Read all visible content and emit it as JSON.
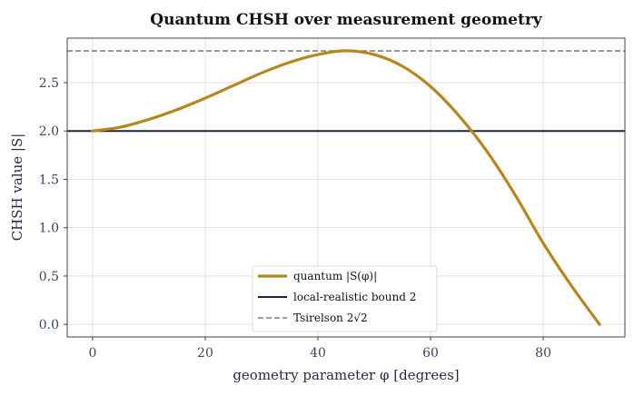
{
  "chart_data": {
    "type": "line",
    "title": "Quantum CHSH over measurement geometry",
    "xlabel": "geometry parameter  φ  [degrees]",
    "ylabel": "CHSH value  |S|",
    "xlim": [
      -4.5,
      94.5
    ],
    "ylim": [
      -0.13,
      2.96
    ],
    "x_ticks": [
      0,
      20,
      40,
      60,
      80
    ],
    "x_tick_labels": [
      "0",
      "20",
      "40",
      "60",
      "80"
    ],
    "y_ticks": [
      0.0,
      0.5,
      1.0,
      1.5,
      2.0,
      2.5
    ],
    "y_tick_labels": [
      "0.0",
      "0.5",
      "1.0",
      "1.5",
      "2.0",
      "2.5"
    ],
    "grid": true,
    "legend_position": "bottom-center",
    "series": [
      {
        "name": "quantum |S(φ)|",
        "style": "solid",
        "color": "#b8861f",
        "x": [
          0,
          5,
          10,
          15,
          20,
          25,
          30,
          35,
          40,
          45,
          50,
          55,
          60,
          65,
          70,
          75,
          80,
          85,
          90
        ],
        "y": [
          2.0,
          2.04,
          2.12,
          2.22,
          2.34,
          2.47,
          2.6,
          2.71,
          2.79,
          2.83,
          2.79,
          2.67,
          2.46,
          2.16,
          1.79,
          1.34,
          0.84,
          0.4,
          0.0
        ]
      },
      {
        "name": "local-realistic bound 2",
        "style": "solid",
        "color": "#1b2440",
        "y_const": 2.0
      },
      {
        "name": "Tsirelson 2√2",
        "style": "dashed",
        "color": "#808080",
        "y_const": 2.828
      }
    ]
  }
}
